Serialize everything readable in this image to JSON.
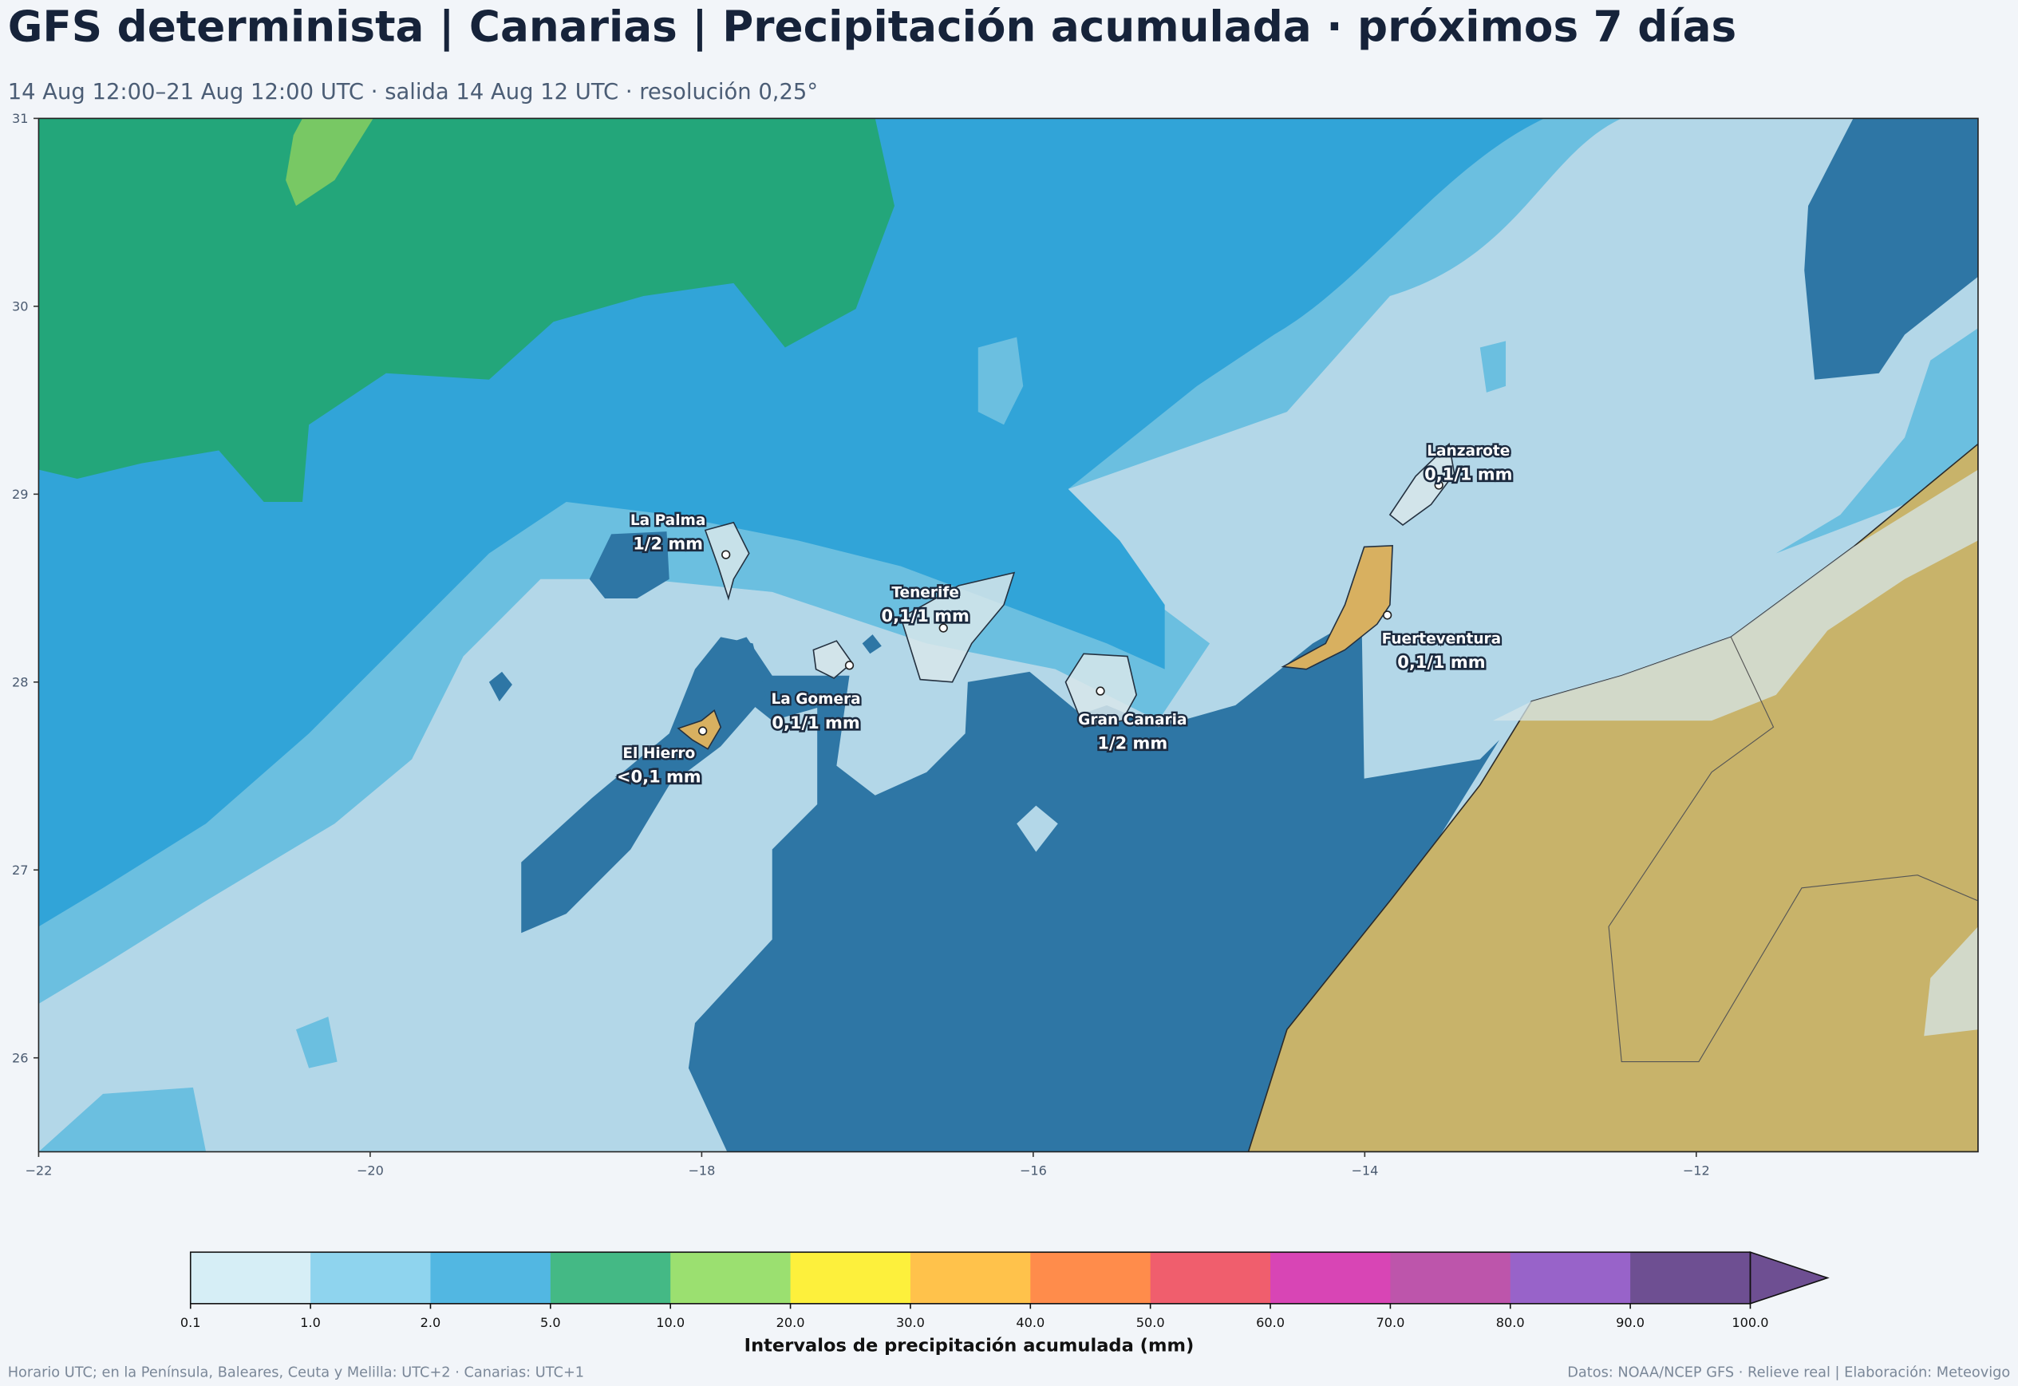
{
  "header": {
    "title": "GFS determinista | Canarias | Precipitación acumulada · próximos 7 días",
    "subtitle": "14 Aug 12:00–21 Aug 12:00 UTC · salida 14 Aug 12 UTC · resolución 0,25°"
  },
  "map": {
    "xlim": [
      -22,
      -10.3
    ],
    "ylim": [
      25.5,
      31
    ],
    "xticks": [
      {
        "value": -22,
        "label": "−22"
      },
      {
        "value": -20,
        "label": "−20"
      },
      {
        "value": -18,
        "label": "−18"
      },
      {
        "value": -16,
        "label": "−16"
      },
      {
        "value": -14,
        "label": "−14"
      },
      {
        "value": -12,
        "label": "−12"
      }
    ],
    "yticks": [
      26,
      27,
      28,
      29,
      30,
      31
    ],
    "islands": [
      {
        "name": "La Palma",
        "value": "1/2 mm"
      },
      {
        "name": "Tenerife",
        "value": "0,1/1 mm"
      },
      {
        "name": "La Gomera",
        "value": "0,1/1 mm"
      },
      {
        "name": "El Hierro",
        "value": "<0,1 mm"
      },
      {
        "name": "Gran Canaria",
        "value": "1/2 mm"
      },
      {
        "name": "Lanzarote",
        "value": "0,1/1 mm"
      },
      {
        "name": "Fuerteventura",
        "value": "0,1/1 mm"
      }
    ]
  },
  "colorbar": {
    "labels": [
      "0.1",
      "1.0",
      "2.0",
      "5.0",
      "10.0",
      "20.0",
      "30.0",
      "40.0",
      "50.0",
      "60.0",
      "70.0",
      "80.0",
      "90.0",
      "100.0"
    ],
    "colors": [
      "#d6eef6",
      "#8fd4ee",
      "#52b7e2",
      "#44b985",
      "#9be070",
      "#fdf03c",
      "#ffc24b",
      "#ff8c4b",
      "#f05e6d",
      "#d845b5",
      "#bd55ab",
      "#9863c9",
      "#6e4f92"
    ],
    "extend_color": "#6e4f92",
    "label": "Intervalos de precipitación acumulada (mm)"
  },
  "footer": {
    "left": "Horario UTC; en la Península, Baleares, Ceuta y Melilla: UTC+2 · Canarias: UTC+1",
    "right": "Datos: NOAA/NCEP GFS · Relieve real | Elaboración: Meteovigo"
  }
}
